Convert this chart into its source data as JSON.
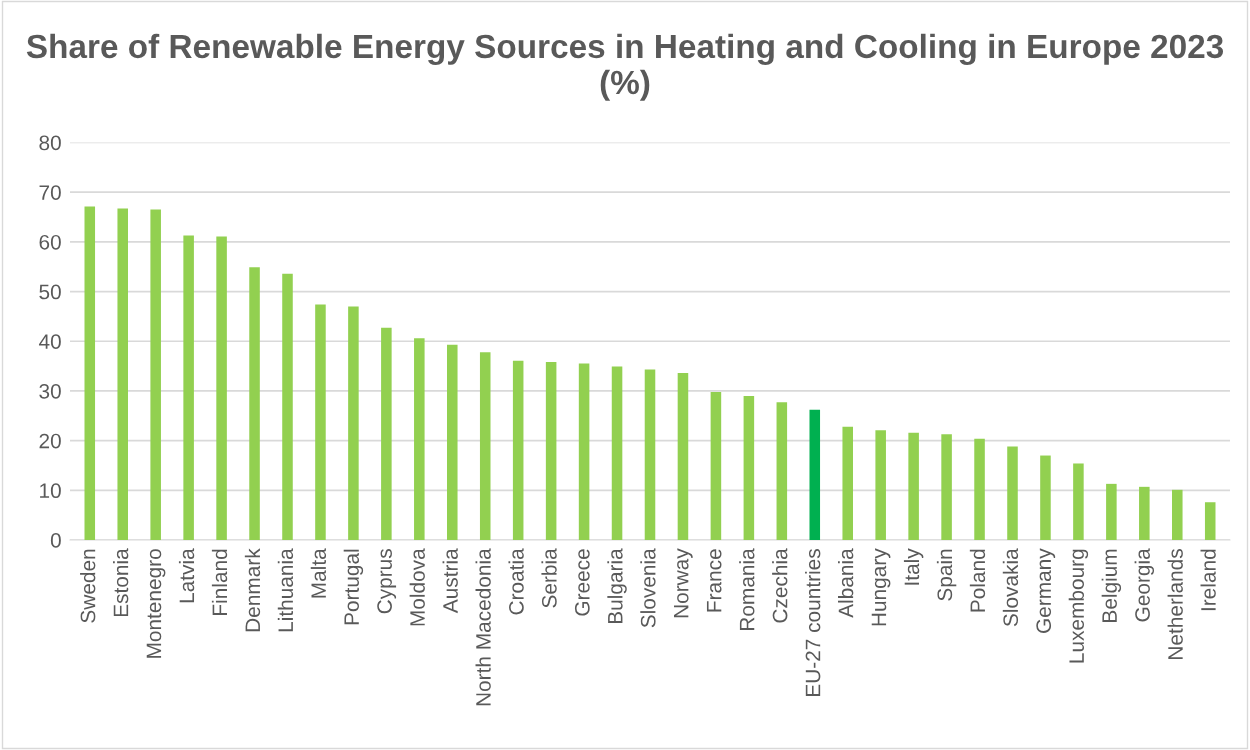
{
  "chart_data": {
    "type": "bar",
    "title": "Share of Renewable Energy Sources in Heating and Cooling in Europe 2023 (%)",
    "categories": [
      "Sweden",
      "Estonia",
      "Montenegro",
      "Latvia",
      "Finland",
      "Denmark",
      "Lithuania",
      "Malta",
      "Portugal",
      "Cyprus",
      "Moldova",
      "Austria",
      "North Macedonia",
      "Croatia",
      "Serbia",
      "Greece",
      "Bulgaria",
      "Slovenia",
      "Norway",
      "France",
      "Romania",
      "Czechia",
      "EU-27 countries",
      "Albania",
      "Hungary",
      "Italy",
      "Spain",
      "Poland",
      "Slovakia",
      "Germany",
      "Luxembourg",
      "Belgium",
      "Georgia",
      "Netherlands",
      "Ireland"
    ],
    "values": [
      67.1,
      66.7,
      66.5,
      61.3,
      61.1,
      54.9,
      53.6,
      47.4,
      47.0,
      42.7,
      40.6,
      39.3,
      37.8,
      36.1,
      35.8,
      35.5,
      34.9,
      34.3,
      33.6,
      29.8,
      29.0,
      27.7,
      26.2,
      22.8,
      22.1,
      21.6,
      21.3,
      20.4,
      18.8,
      17.0,
      15.4,
      11.3,
      10.7,
      10.1,
      7.6
    ],
    "colors": [
      "#92d050",
      "#92d050",
      "#92d050",
      "#92d050",
      "#92d050",
      "#92d050",
      "#92d050",
      "#92d050",
      "#92d050",
      "#92d050",
      "#92d050",
      "#92d050",
      "#92d050",
      "#92d050",
      "#92d050",
      "#92d050",
      "#92d050",
      "#92d050",
      "#92d050",
      "#92d050",
      "#92d050",
      "#92d050",
      "#00b050",
      "#92d050",
      "#92d050",
      "#92d050",
      "#92d050",
      "#92d050",
      "#92d050",
      "#92d050",
      "#92d050",
      "#92d050",
      "#92d050",
      "#92d050",
      "#92d050"
    ],
    "ylim": [
      0,
      80
    ],
    "yticks": [
      0,
      10,
      20,
      30,
      40,
      50,
      60,
      70,
      80
    ],
    "grid": "y",
    "legend": false
  }
}
